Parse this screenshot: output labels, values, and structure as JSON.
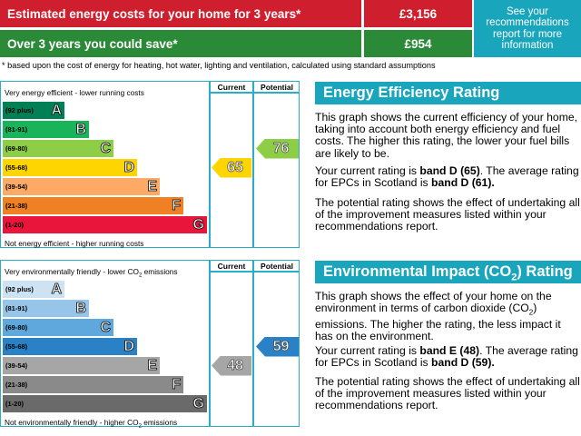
{
  "summary": {
    "cost_label": "Estimated energy costs for your home for 3 years*",
    "cost_value": "£3,156",
    "saving_label": "Over 3 years you could save*",
    "saving_value": "£954",
    "recommend_link": "See your recommendations report for more information",
    "footnote": "* based upon the cost of energy for heating, hot water, lighting and ventilation, calculated using standard assumptions",
    "colors": {
      "red": "#cf1e2d",
      "green": "#2a8a37",
      "teal": "#19a6bd"
    }
  },
  "chart_data": [
    {
      "type": "table",
      "title": "Energy Efficiency Rating",
      "top_caption": "Very energy efficient - lower running costs",
      "bottom_caption": "Not energy efficient - higher running costs",
      "col_current": "Current",
      "col_potential": "Potential",
      "bands": [
        {
          "range": "(92 plus)",
          "letter": "A",
          "color": "#008054"
        },
        {
          "range": "(81-91)",
          "letter": "B",
          "color": "#19b459"
        },
        {
          "range": "(69-80)",
          "letter": "C",
          "color": "#8dce46"
        },
        {
          "range": "(55-68)",
          "letter": "D",
          "color": "#ffd500"
        },
        {
          "range": "(39-54)",
          "letter": "E",
          "color": "#fcaa65"
        },
        {
          "range": "(21-38)",
          "letter": "F",
          "color": "#ef8023"
        },
        {
          "range": "(1-20)",
          "letter": "G",
          "color": "#e9153b"
        }
      ],
      "current": {
        "value": "65",
        "band": "D",
        "color": "#ffd500"
      },
      "potential": {
        "value": "76",
        "band": "C",
        "color": "#8dce46"
      }
    },
    {
      "type": "table",
      "title": "Environmental Impact (CO2) Rating",
      "top_caption": "Very environmentally friendly - lower CO2 emissions",
      "bottom_caption": "Not environmentally friendly - higher CO2 emissions",
      "col_current": "Current",
      "col_potential": "Potential",
      "bands": [
        {
          "range": "(92 plus)",
          "letter": "A",
          "color": "#cde3f4"
        },
        {
          "range": "(81-91)",
          "letter": "B",
          "color": "#97c5ea"
        },
        {
          "range": "(69-80)",
          "letter": "C",
          "color": "#5ea8dd"
        },
        {
          "range": "(55-68)",
          "letter": "D",
          "color": "#2a81c6"
        },
        {
          "range": "(39-54)",
          "letter": "E",
          "color": "#a6a6a6"
        },
        {
          "range": "(21-38)",
          "letter": "F",
          "color": "#8a8a8a"
        },
        {
          "range": "(1-20)",
          "letter": "G",
          "color": "#6a6a6a"
        }
      ],
      "current": {
        "value": "48",
        "band": "E",
        "color": "#a6a6a6"
      },
      "potential": {
        "value": "59",
        "band": "D",
        "color": "#2a81c6"
      }
    }
  ],
  "energy_text": {
    "heading": "Energy Efficiency Rating",
    "p1": "This graph shows the current efficiency of your home, taking into account both energy efficiency and fuel costs. The higher this rating, the lower your fuel bills are likely to be.",
    "p2_pre": "Your current rating is ",
    "p2_b1": "band D (65)",
    "p2_mid": ". The average rating for EPCs in Scotland is ",
    "p2_b2": "band D (61).",
    "p3": "The potential rating shows the effect of undertaking all of the improvement measures listed within your recommendations report."
  },
  "env_text": {
    "heading_pre": "Environmental Impact (CO",
    "heading_sub": "2",
    "heading_post": ") Rating",
    "p1_a": "This graph shows the effect of your home on the environment in terms of carbon dioxide (CO",
    "p1_sub": "2",
    "p1_b": ") emissions. The higher the rating, the less impact it has on the environment.",
    "p2_pre": "Your current rating is ",
    "p2_b1": "band E (48)",
    "p2_mid": ". The average rating for EPCs in Scotland is ",
    "p2_b2": "band D (59).",
    "p3": "The potential rating shows the effect of undertaking all of the improvement measures listed within your recommendations report."
  }
}
